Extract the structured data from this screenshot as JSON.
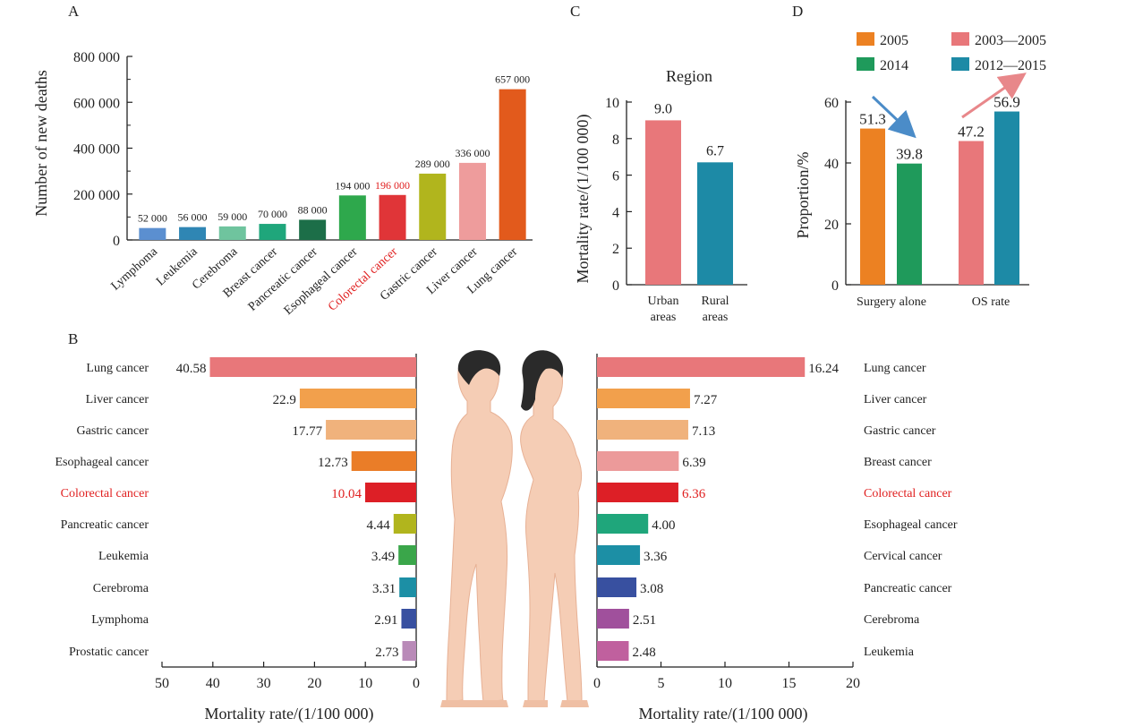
{
  "figure": {
    "panel_letters": [
      "A",
      "B",
      "C",
      "D"
    ]
  },
  "chart_data": [
    {
      "panel": "A",
      "type": "bar",
      "ylabel": "Number of new deaths",
      "yticks": [
        "0",
        "200 000",
        "400 000",
        "600 000",
        "800 000"
      ],
      "ylim": [
        0,
        800000
      ],
      "grid": false,
      "highlight": "Colorectal cancer",
      "categories": [
        "Lymphoma",
        "Leukemia",
        "Cerebroma",
        "Breast cancer",
        "Pancreatic cancer",
        "Esophageal cancer",
        "Colorectal cancer",
        "Gastric cancer",
        "Liver cancer",
        "Lung cancer"
      ],
      "values": [
        52000,
        56000,
        59000,
        70000,
        88000,
        194000,
        196000,
        289000,
        336000,
        657000
      ],
      "value_labels": [
        "52 000",
        "56 000",
        "59 000",
        "70 000",
        "88 000",
        "194 000",
        "196 000",
        "289 000",
        "336 000",
        "657 000"
      ],
      "colors": [
        "#5b8fd0",
        "#2f86b4",
        "#6fc49e",
        "#1fa67b",
        "#1c6e48",
        "#2ea84c",
        "#e03538",
        "#b1b51d",
        "#ee9c9c",
        "#e25a1c"
      ]
    },
    {
      "panel": "C",
      "type": "bar",
      "title": "Region",
      "ylabel": "Mortality rate/(1/100 000)",
      "yticks": [
        "0",
        "2",
        "4",
        "6",
        "8",
        "10"
      ],
      "ylim": [
        0,
        10
      ],
      "grid": false,
      "categories": [
        "Urban areas",
        "Rural areas"
      ],
      "category_lines": [
        [
          "Urban",
          "areas"
        ],
        [
          "Rural",
          "areas"
        ]
      ],
      "values": [
        9.0,
        6.7
      ],
      "value_labels": [
        "9.0",
        "6.7"
      ],
      "colors": [
        "#e8777a",
        "#1d8aa6"
      ]
    },
    {
      "panel": "D",
      "type": "bar",
      "ylabel": "Proportion/%",
      "yticks": [
        "0",
        "20",
        "40",
        "60"
      ],
      "ylim": [
        0,
        60
      ],
      "grid": false,
      "legend_position": "top",
      "categories": [
        "Surgery alone",
        "OS rate"
      ],
      "series": [
        {
          "name": "2005",
          "color": "#ec8122"
        },
        {
          "name": "2014",
          "color": "#1f9a5b"
        },
        {
          "name": "2003—2005",
          "color": "#e8777a"
        },
        {
          "name": "2012—2015",
          "color": "#1d8aa6"
        }
      ],
      "bars": [
        {
          "category": "Surgery alone",
          "series": "2005",
          "value": 51.3,
          "label": "51.3",
          "color": "#ec8122"
        },
        {
          "category": "Surgery alone",
          "series": "2014",
          "value": 39.8,
          "label": "39.8",
          "color": "#1f9a5b"
        },
        {
          "category": "OS rate",
          "series": "2003—2005",
          "value": 47.2,
          "label": "47.2",
          "color": "#e8777a"
        },
        {
          "category": "OS rate",
          "series": "2012—2015",
          "value": 56.9,
          "label": "56.9",
          "color": "#1d8aa6"
        }
      ],
      "arrows": [
        {
          "category": "Surgery alone",
          "direction": "down",
          "color": "#4b8cc8"
        },
        {
          "category": "OS rate",
          "direction": "up",
          "color": "#e8878a"
        }
      ]
    },
    {
      "panel": "B",
      "type": "bar",
      "orientation": "horizontal",
      "group": "male",
      "xlabel": "Mortality rate/(1/100 000)",
      "xticks": [
        "50",
        "40",
        "30",
        "20",
        "10",
        "0"
      ],
      "xlim": [
        50,
        0
      ],
      "grid": false,
      "highlight": "Colorectal cancer",
      "categories": [
        "Lung cancer",
        "Liver cancer",
        "Gastric cancer",
        "Esophageal cancer",
        "Colorectal cancer",
        "Pancreatic cancer",
        "Leukemia",
        "Cerebroma",
        "Lymphoma",
        "Prostatic cancer"
      ],
      "values": [
        40.58,
        22.9,
        17.77,
        12.73,
        10.04,
        4.44,
        3.49,
        3.31,
        2.91,
        2.73
      ],
      "value_labels": [
        "40.58",
        "22.9",
        "17.77",
        "12.73",
        "10.04",
        "4.44",
        "3.49",
        "3.31",
        "2.91",
        "2.73"
      ],
      "colors": [
        "#e8777a",
        "#f2a04c",
        "#f0b27c",
        "#ea7d28",
        "#dd1f26",
        "#b1b51d",
        "#3aa64a",
        "#1c8fa5",
        "#3850a0",
        "#b98ab8"
      ]
    },
    {
      "panel": "B",
      "type": "bar",
      "orientation": "horizontal",
      "group": "female",
      "xlabel": "Mortality rate/(1/100 000)",
      "xticks": [
        "0",
        "5",
        "10",
        "15",
        "20"
      ],
      "xlim": [
        0,
        20
      ],
      "grid": false,
      "highlight": "Colorectal cancer",
      "categories": [
        "Lung cancer",
        "Liver cancer",
        "Gastric cancer",
        "Breast cancer",
        "Colorectal cancer",
        "Esophageal cancer",
        "Cervical cancer",
        "Pancreatic cancer",
        "Cerebroma",
        "Leukemia"
      ],
      "values": [
        16.24,
        7.27,
        7.13,
        6.39,
        6.36,
        4.0,
        3.36,
        3.08,
        2.51,
        2.48
      ],
      "value_labels": [
        "16.24",
        "7.27",
        "7.13",
        "6.39",
        "6.36",
        "4.00",
        "3.36",
        "3.08",
        "2.51",
        "2.48"
      ],
      "colors": [
        "#e8777a",
        "#f2a04c",
        "#f0b27c",
        "#ec9a9a",
        "#dd1f26",
        "#1fa67b",
        "#1c8fa5",
        "#3850a0",
        "#a0509c",
        "#c0609e"
      ]
    }
  ],
  "colors": {
    "axis": "#222222",
    "skin": "#f5cdb5",
    "skin_shadow": "#e7b195",
    "hair": "#2a2a2a",
    "highlight_text": "#e02020"
  },
  "icons": [
    "male-body-illustration",
    "female-body-illustration"
  ]
}
